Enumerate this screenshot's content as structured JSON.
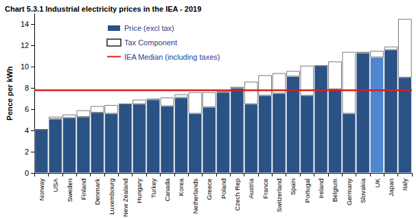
{
  "chart_data": {
    "type": "bar",
    "title": "Chart 5.3.1 Industrial electricity prices in the IEA - 2019",
    "y_label": "Pence per kWh",
    "categories": [
      "Norway",
      "USA",
      "Sweden",
      "Finland",
      "Denmark",
      "Luxembourg",
      "New Zealand",
      "Hungary",
      "Turkey",
      "Canada",
      "Korea",
      "Netherlands",
      "Greece",
      "Poland",
      "Czech Rep",
      "Austria",
      "France",
      "Switzerland",
      "Spain",
      "Portugal",
      "Ireland",
      "Belgium",
      "Germany",
      "Slovakia",
      "UK",
      "Japan",
      "Italy"
    ],
    "series": [
      {
        "name": "Price (excl tax)",
        "colors": [
          "#2a5284",
          "#2a5284",
          "#2a5284",
          "#2a5284",
          "#2a5284",
          "#2a5284",
          "#2a5284",
          "#2a5284",
          "#2a5284",
          "#2a5284",
          "#2a5284",
          "#2a5284",
          "#2a5284",
          "#2a5284",
          "#2a5284",
          "#2a5284",
          "#2a5284",
          "#2a5284",
          "#2a5284",
          "#2a5284",
          "#2a5284",
          "#2a5284",
          "#2a5284",
          "#2a5284",
          "#4f86d0",
          "#2a5284",
          "#2a5284"
        ],
        "values": [
          4.1,
          5.1,
          5.2,
          5.3,
          5.7,
          5.6,
          6.5,
          6.5,
          6.9,
          6.3,
          7.1,
          5.6,
          6.2,
          7.6,
          8.0,
          6.5,
          7.3,
          7.5,
          9.1,
          7.3,
          10.1,
          7.9,
          5.6,
          11.3,
          10.9,
          11.6,
          9.0
        ]
      },
      {
        "name": "Tax Component",
        "color": "#ffffff",
        "values": [
          0,
          0.2,
          0.3,
          0.6,
          0.6,
          0.8,
          0,
          0.4,
          0.1,
          0.8,
          0.3,
          2.0,
          1.4,
          0.1,
          0.1,
          2.1,
          1.9,
          1.9,
          0.5,
          2.8,
          0,
          2.6,
          5.8,
          0.1,
          0.6,
          0.3,
          5.5
        ]
      },
      {
        "name": "IEA Median (including taxes)",
        "type": "hline",
        "color": "#e01a1a",
        "value": 7.8
      }
    ],
    "stacked": true,
    "ylim": [
      0,
      15
    ],
    "yticks": [
      0,
      2,
      4,
      6,
      8,
      10,
      12,
      14
    ],
    "grid": false,
    "legend": "upper left"
  }
}
